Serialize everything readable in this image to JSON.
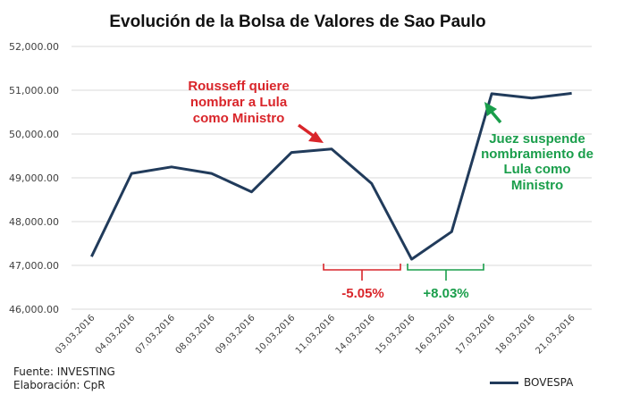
{
  "colors": {
    "line": "#213b5b",
    "grid": "#d9d9d9",
    "red": "#d9252a",
    "green": "#1a9e4b",
    "text": "#404040"
  },
  "chart_data": {
    "type": "line",
    "title": "Evolución de la Bolsa de Valores de Sao Paulo",
    "categories": [
      "03.03.2016",
      "04.03.2016",
      "07.03.2016",
      "08.03.2016",
      "09.03.2016",
      "10.03.2016",
      "11.03.2016",
      "14.03.2016",
      "15.03.2016",
      "16.03.2016",
      "17.03.2016",
      "18.03.2016",
      "21.03.2016"
    ],
    "series": [
      {
        "name": "BOVESPA",
        "values": [
          47200,
          49100,
          49250,
          49100,
          48680,
          49580,
          49660,
          48870,
          47140,
          47770,
          50920,
          50820,
          50930
        ]
      }
    ],
    "yticks": [
      "46,000.00",
      "47,000.00",
      "48,000.00",
      "49,000.00",
      "50,000.00",
      "51,000.00",
      "52,000.00"
    ],
    "ylim": [
      46000,
      52000
    ],
    "grid": true,
    "legend_position": "bottom-right",
    "annotations": {
      "red_note": [
        "Rousseff quiere",
        "nombrar a Lula",
        "como Ministro"
      ],
      "green_note": [
        "Juez suspende",
        "nombramiento de",
        "Lula como",
        "Ministro"
      ],
      "drop_label": "-5.05%",
      "rise_label": "+8.03%"
    }
  },
  "footer": {
    "source": "Fuente: INVESTING",
    "credit": "Elaboración: CpR"
  }
}
